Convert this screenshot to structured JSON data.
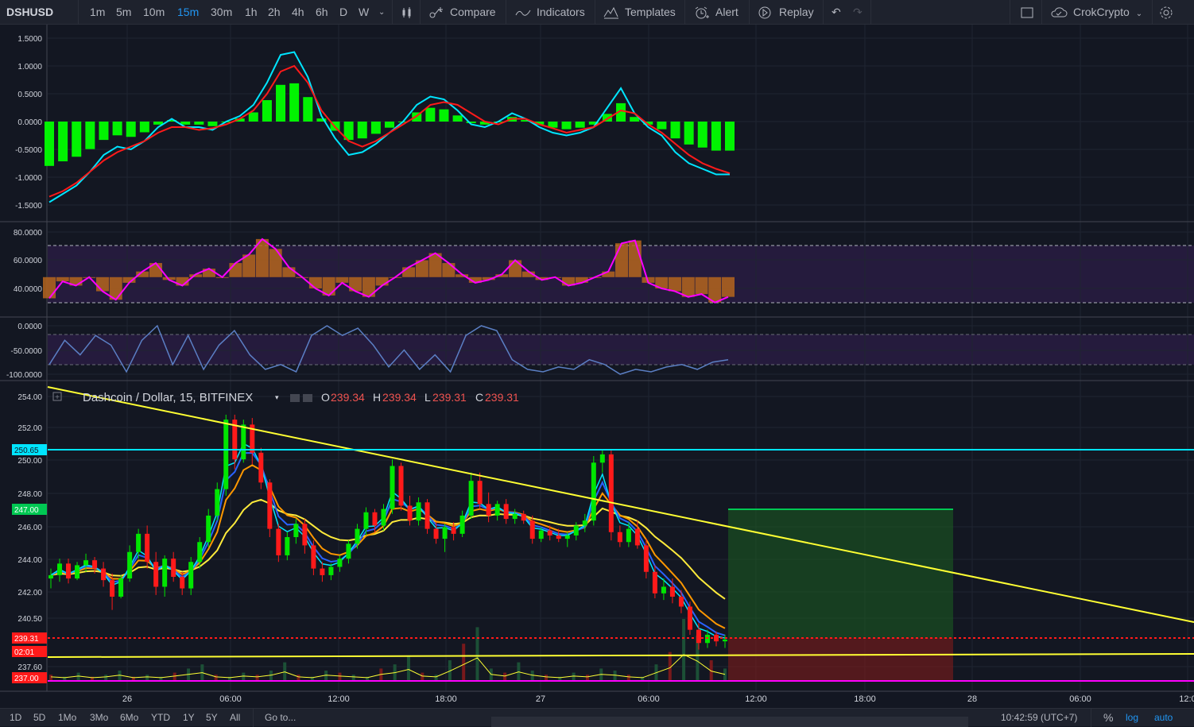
{
  "symbol": "DSHUSD",
  "intervals": [
    "1m",
    "5m",
    "10m",
    "15m",
    "30m",
    "1h",
    "2h",
    "4h",
    "6h",
    "D",
    "W"
  ],
  "active_interval": "15m",
  "toolbar": {
    "compare": "Compare",
    "indicators": "Indicators",
    "templates": "Templates",
    "alert": "Alert",
    "replay": "Replay"
  },
  "user": "CrokCrypto",
  "legend": {
    "title": "Dashcoin / Dollar, 15, BITFINEX",
    "o_label": "O",
    "o": "239.34",
    "h_label": "H",
    "h": "239.34",
    "l_label": "L",
    "l": "239.31",
    "c_label": "C",
    "c": "239.31"
  },
  "macd_axis": [
    "1.5000",
    "1.0000",
    "0.5000",
    "0.0000",
    "-0.5000",
    "-1.0000",
    "-1.5000"
  ],
  "rsi_axis": [
    "80.0000",
    "60.0000",
    "40.0000"
  ],
  "wr_axis": [
    "0.0000",
    "-50.0000",
    "-100.0000"
  ],
  "price_axis": [
    "254.00",
    "252.00",
    "250.00",
    "248.00",
    "246.00",
    "244.00",
    "242.00",
    "240.50",
    "237.60"
  ],
  "price_labels": {
    "hline": "250.65",
    "target": "247.00",
    "last": "239.31",
    "countdown": "02:01",
    "stop": "237.00"
  },
  "time_axis": [
    "26",
    "06:00",
    "12:00",
    "18:00",
    "27",
    "06:00",
    "12:00",
    "18:00",
    "28",
    "06:00",
    "12:0"
  ],
  "ranges": [
    "1D",
    "5D",
    "1Mo",
    "3Mo",
    "6Mo",
    "YTD",
    "1Y",
    "5Y",
    "All"
  ],
  "goto": "Go to...",
  "clock": "10:42:59 (UTC+7)",
  "bottom_right": {
    "percent": "%",
    "log": "log",
    "auto": "auto"
  },
  "colors": {
    "up": "#26a69a",
    "down": "#ef5350",
    "macd_hist": "#00ff00",
    "signal": "#ff0000",
    "macd": "#00e5ff",
    "rsi": "#ff00ff",
    "wr": "#5b7fc4",
    "trend": "#ffff33",
    "hline": "#00e5ff",
    "target_zone": "#1b5e20",
    "stop_zone": "#7f1a1a"
  },
  "price_series": [
    {
      "o": 243.0,
      "h": 243.6,
      "l": 242.4,
      "c": 243.2
    },
    {
      "o": 243.2,
      "h": 244.2,
      "l": 242.8,
      "c": 243.9
    },
    {
      "o": 243.9,
      "h": 244.2,
      "l": 242.7,
      "c": 243.0
    },
    {
      "o": 243.0,
      "h": 244.0,
      "l": 242.9,
      "c": 243.8
    },
    {
      "o": 243.8,
      "h": 244.5,
      "l": 243.4,
      "c": 244.1
    },
    {
      "o": 244.1,
      "h": 244.3,
      "l": 243.3,
      "c": 243.6
    },
    {
      "o": 243.6,
      "h": 244.0,
      "l": 242.5,
      "c": 242.9
    },
    {
      "o": 242.9,
      "h": 243.3,
      "l": 241.1,
      "c": 241.9
    },
    {
      "o": 241.9,
      "h": 243.2,
      "l": 241.8,
      "c": 243.0
    },
    {
      "o": 243.0,
      "h": 245.0,
      "l": 242.8,
      "c": 244.6
    },
    {
      "o": 244.6,
      "h": 246.0,
      "l": 244.2,
      "c": 245.7
    },
    {
      "o": 245.7,
      "h": 246.2,
      "l": 243.6,
      "c": 244.0
    },
    {
      "o": 244.0,
      "h": 244.6,
      "l": 242.0,
      "c": 242.5
    },
    {
      "o": 242.5,
      "h": 244.4,
      "l": 241.9,
      "c": 244.2
    },
    {
      "o": 244.2,
      "h": 244.6,
      "l": 242.8,
      "c": 243.1
    },
    {
      "o": 243.1,
      "h": 243.4,
      "l": 242.0,
      "c": 242.4
    },
    {
      "o": 242.4,
      "h": 244.3,
      "l": 242.0,
      "c": 244.0
    },
    {
      "o": 244.0,
      "h": 245.5,
      "l": 243.6,
      "c": 245.2
    },
    {
      "o": 245.2,
      "h": 247.2,
      "l": 244.9,
      "c": 246.8
    },
    {
      "o": 246.8,
      "h": 248.8,
      "l": 246.5,
      "c": 248.4
    },
    {
      "o": 248.4,
      "h": 252.9,
      "l": 248.0,
      "c": 252.6
    },
    {
      "o": 252.6,
      "h": 252.9,
      "l": 249.6,
      "c": 250.2
    },
    {
      "o": 250.2,
      "h": 252.6,
      "l": 250.0,
      "c": 252.3
    },
    {
      "o": 252.3,
      "h": 252.7,
      "l": 249.9,
      "c": 250.6
    },
    {
      "o": 250.6,
      "h": 250.9,
      "l": 248.4,
      "c": 248.8
    },
    {
      "o": 248.8,
      "h": 249.0,
      "l": 245.5,
      "c": 246.0
    },
    {
      "o": 246.0,
      "h": 246.3,
      "l": 244.0,
      "c": 244.4
    },
    {
      "o": 244.4,
      "h": 245.8,
      "l": 244.1,
      "c": 245.5
    },
    {
      "o": 245.5,
      "h": 246.6,
      "l": 245.1,
      "c": 246.3
    },
    {
      "o": 246.3,
      "h": 246.6,
      "l": 244.5,
      "c": 245.0
    },
    {
      "o": 245.0,
      "h": 245.3,
      "l": 243.2,
      "c": 243.6
    },
    {
      "o": 243.6,
      "h": 244.0,
      "l": 242.8,
      "c": 243.2
    },
    {
      "o": 243.2,
      "h": 243.9,
      "l": 242.9,
      "c": 243.7
    },
    {
      "o": 243.7,
      "h": 244.4,
      "l": 243.4,
      "c": 244.2
    },
    {
      "o": 244.2,
      "h": 245.3,
      "l": 243.9,
      "c": 245.1
    },
    {
      "o": 245.1,
      "h": 246.3,
      "l": 244.8,
      "c": 246.0
    },
    {
      "o": 246.0,
      "h": 247.3,
      "l": 245.6,
      "c": 247.0
    },
    {
      "o": 247.0,
      "h": 247.2,
      "l": 245.8,
      "c": 246.2
    },
    {
      "o": 246.2,
      "h": 247.5,
      "l": 245.9,
      "c": 247.2
    },
    {
      "o": 247.2,
      "h": 250.2,
      "l": 246.9,
      "c": 249.8
    },
    {
      "o": 249.8,
      "h": 250.0,
      "l": 247.1,
      "c": 247.4
    },
    {
      "o": 247.4,
      "h": 248.0,
      "l": 246.2,
      "c": 246.5
    },
    {
      "o": 246.5,
      "h": 247.9,
      "l": 246.2,
      "c": 247.6
    },
    {
      "o": 247.6,
      "h": 247.8,
      "l": 245.7,
      "c": 246.0
    },
    {
      "o": 246.0,
      "h": 246.4,
      "l": 245.1,
      "c": 245.4
    },
    {
      "o": 245.4,
      "h": 246.3,
      "l": 244.6,
      "c": 246.1
    },
    {
      "o": 246.1,
      "h": 246.4,
      "l": 245.3,
      "c": 245.7
    },
    {
      "o": 245.7,
      "h": 247.1,
      "l": 245.5,
      "c": 246.8
    },
    {
      "o": 246.8,
      "h": 249.4,
      "l": 246.6,
      "c": 248.9
    },
    {
      "o": 248.9,
      "h": 249.4,
      "l": 247.2,
      "c": 247.5
    },
    {
      "o": 247.5,
      "h": 248.2,
      "l": 246.4,
      "c": 246.8
    },
    {
      "o": 246.8,
      "h": 247.7,
      "l": 246.5,
      "c": 247.5
    },
    {
      "o": 247.5,
      "h": 247.8,
      "l": 246.3,
      "c": 246.6
    },
    {
      "o": 246.6,
      "h": 247.2,
      "l": 246.3,
      "c": 246.9
    },
    {
      "o": 246.9,
      "h": 247.1,
      "l": 246.3,
      "c": 246.5
    },
    {
      "o": 246.5,
      "h": 246.8,
      "l": 245.1,
      "c": 245.4
    },
    {
      "o": 245.4,
      "h": 246.1,
      "l": 245.2,
      "c": 245.9
    },
    {
      "o": 245.9,
      "h": 246.2,
      "l": 245.3,
      "c": 245.6
    },
    {
      "o": 245.6,
      "h": 246.0,
      "l": 245.2,
      "c": 245.4
    },
    {
      "o": 245.4,
      "h": 245.8,
      "l": 244.9,
      "c": 245.6
    },
    {
      "o": 245.6,
      "h": 246.4,
      "l": 245.3,
      "c": 246.2
    },
    {
      "o": 246.2,
      "h": 246.9,
      "l": 245.8,
      "c": 246.5
    },
    {
      "o": 246.5,
      "h": 250.4,
      "l": 246.2,
      "c": 250.0
    },
    {
      "o": 250.0,
      "h": 250.8,
      "l": 249.4,
      "c": 250.5
    },
    {
      "o": 250.5,
      "h": 250.8,
      "l": 245.3,
      "c": 245.8
    },
    {
      "o": 245.8,
      "h": 246.2,
      "l": 244.9,
      "c": 245.2
    },
    {
      "o": 245.2,
      "h": 246.4,
      "l": 244.9,
      "c": 246.0
    },
    {
      "o": 246.0,
      "h": 246.5,
      "l": 244.8,
      "c": 245.0
    },
    {
      "o": 245.0,
      "h": 245.4,
      "l": 243.0,
      "c": 243.4
    },
    {
      "o": 243.4,
      "h": 243.8,
      "l": 241.8,
      "c": 242.1
    },
    {
      "o": 242.1,
      "h": 243.0,
      "l": 241.7,
      "c": 242.5
    },
    {
      "o": 242.5,
      "h": 243.0,
      "l": 241.5,
      "c": 241.9
    },
    {
      "o": 241.9,
      "h": 242.3,
      "l": 240.9,
      "c": 241.3
    },
    {
      "o": 241.3,
      "h": 241.6,
      "l": 239.6,
      "c": 239.9
    },
    {
      "o": 239.9,
      "h": 240.3,
      "l": 238.7,
      "c": 239.1
    },
    {
      "o": 239.1,
      "h": 239.9,
      "l": 238.8,
      "c": 239.6
    },
    {
      "o": 239.6,
      "h": 239.8,
      "l": 238.9,
      "c": 239.2
    },
    {
      "o": 239.2,
      "h": 239.6,
      "l": 238.8,
      "c": 239.31
    }
  ],
  "macd_series": [
    -1.45,
    -1.3,
    -1.15,
    -0.9,
    -0.6,
    -0.45,
    -0.5,
    -0.35,
    -0.1,
    0.05,
    -0.1,
    -0.1,
    -0.15,
    0.0,
    0.1,
    0.3,
    0.7,
    1.2,
    1.25,
    0.8,
    0.1,
    -0.3,
    -0.6,
    -0.55,
    -0.4,
    -0.2,
    0.0,
    0.3,
    0.45,
    0.4,
    0.2,
    -0.05,
    -0.1,
    0.0,
    0.15,
    0.05,
    -0.1,
    -0.2,
    -0.25,
    -0.2,
    -0.1,
    0.25,
    0.6,
    0.15,
    -0.1,
    -0.25,
    -0.55,
    -0.75,
    -0.85,
    -0.95,
    -0.95
  ],
  "signal_series": [
    -1.35,
    -1.25,
    -1.1,
    -0.9,
    -0.7,
    -0.55,
    -0.45,
    -0.35,
    -0.2,
    -0.1,
    -0.1,
    -0.15,
    -0.12,
    -0.05,
    0.05,
    0.2,
    0.5,
    0.9,
    1.0,
    0.7,
    0.2,
    -0.1,
    -0.35,
    -0.45,
    -0.35,
    -0.2,
    -0.05,
    0.1,
    0.3,
    0.35,
    0.3,
    0.15,
    0.0,
    -0.05,
    0.05,
    0.05,
    -0.05,
    -0.12,
    -0.2,
    -0.15,
    -0.1,
    0.05,
    0.2,
    0.15,
    -0.05,
    -0.2,
    -0.4,
    -0.6,
    -0.75,
    -0.85,
    -0.93
  ],
  "rsi_series": [
    33,
    45,
    42,
    48,
    38,
    32,
    44,
    52,
    58,
    46,
    42,
    50,
    54,
    48,
    58,
    64,
    75,
    68,
    55,
    48,
    40,
    35,
    44,
    38,
    34,
    42,
    48,
    55,
    60,
    65,
    58,
    50,
    44,
    46,
    50,
    60,
    52,
    46,
    48,
    42,
    44,
    48,
    52,
    72,
    74,
    44,
    40,
    38,
    34,
    36,
    30,
    34
  ],
  "wr_series": [
    -80,
    -30,
    -60,
    -20,
    -40,
    -95,
    -30,
    0,
    -80,
    -20,
    -90,
    -40,
    -10,
    -60,
    -90,
    -80,
    -95,
    -20,
    0,
    -20,
    -5,
    -40,
    -85,
    -50,
    -90,
    -60,
    -95,
    -20,
    0,
    -10,
    -70,
    -90,
    -95,
    -85,
    -90,
    -70,
    -80,
    -100,
    -90,
    -95,
    -85,
    -80,
    -90,
    -75,
    -70
  ],
  "volume_series": [
    3,
    2,
    4,
    2,
    3,
    5,
    2,
    3,
    2,
    4,
    6,
    8,
    3,
    2,
    4,
    3,
    5,
    9,
    3,
    2,
    5,
    4,
    3,
    2,
    6,
    8,
    12,
    4,
    3,
    10,
    18,
    26,
    6,
    4,
    9,
    5,
    3,
    2,
    4,
    3,
    6,
    5,
    3,
    2,
    8,
    14,
    30,
    22,
    10,
    6
  ]
}
